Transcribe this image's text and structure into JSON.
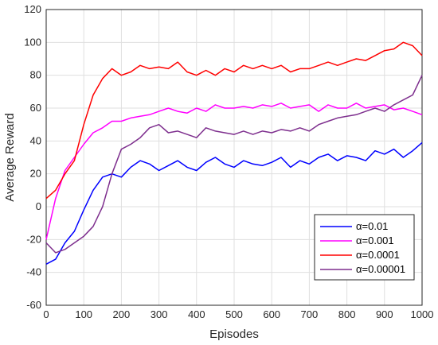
{
  "chart_data": {
    "type": "line",
    "xlabel": "Episodes",
    "ylabel": "Average Reward",
    "xlim": [
      0,
      1000
    ],
    "ylim": [
      -60,
      120
    ],
    "xticks": [
      0,
      100,
      200,
      300,
      400,
      500,
      600,
      700,
      800,
      900,
      1000
    ],
    "yticks": [
      -60,
      -40,
      -20,
      0,
      20,
      40,
      60,
      80,
      100,
      120
    ],
    "grid": true,
    "legend_position": "bottom-right",
    "x": [
      0,
      25,
      50,
      75,
      100,
      125,
      150,
      175,
      200,
      225,
      250,
      275,
      300,
      325,
      350,
      375,
      400,
      425,
      450,
      475,
      500,
      525,
      550,
      575,
      600,
      625,
      650,
      675,
      700,
      725,
      750,
      775,
      800,
      825,
      850,
      875,
      900,
      925,
      950,
      975,
      1000
    ],
    "series": [
      {
        "name": "α=0.01",
        "color": "#0000ff",
        "values": [
          -35,
          -32,
          -22,
          -15,
          -2,
          10,
          18,
          20,
          18,
          24,
          28,
          26,
          22,
          25,
          28,
          24,
          22,
          27,
          30,
          26,
          24,
          28,
          26,
          25,
          27,
          30,
          24,
          28,
          26,
          30,
          32,
          28,
          31,
          30,
          28,
          34,
          32,
          35,
          30,
          34,
          39
        ]
      },
      {
        "name": "α=0.001",
        "color": "#ff00ff",
        "values": [
          -20,
          5,
          22,
          30,
          38,
          45,
          48,
          52,
          52,
          54,
          55,
          56,
          58,
          60,
          58,
          57,
          60,
          58,
          62,
          60,
          60,
          61,
          60,
          62,
          61,
          63,
          60,
          61,
          62,
          58,
          62,
          60,
          60,
          63,
          60,
          61,
          62,
          59,
          60,
          58,
          56
        ]
      },
      {
        "name": "α=0.0001",
        "color": "#ff0000",
        "values": [
          5,
          10,
          20,
          28,
          50,
          68,
          78,
          84,
          80,
          82,
          86,
          84,
          85,
          84,
          88,
          82,
          80,
          83,
          80,
          84,
          82,
          86,
          84,
          86,
          84,
          86,
          82,
          84,
          84,
          86,
          88,
          86,
          88,
          90,
          89,
          92,
          95,
          96,
          100,
          98,
          92
        ]
      },
      {
        "name": "α=0.00001",
        "color": "#7e2f8e",
        "values": [
          -22,
          -28,
          -26,
          -22,
          -18,
          -12,
          0,
          20,
          35,
          38,
          42,
          48,
          50,
          45,
          46,
          44,
          42,
          48,
          46,
          45,
          44,
          46,
          44,
          46,
          45,
          47,
          46,
          48,
          46,
          50,
          52,
          54,
          55,
          56,
          58,
          60,
          58,
          62,
          65,
          68,
          80
        ]
      }
    ]
  }
}
